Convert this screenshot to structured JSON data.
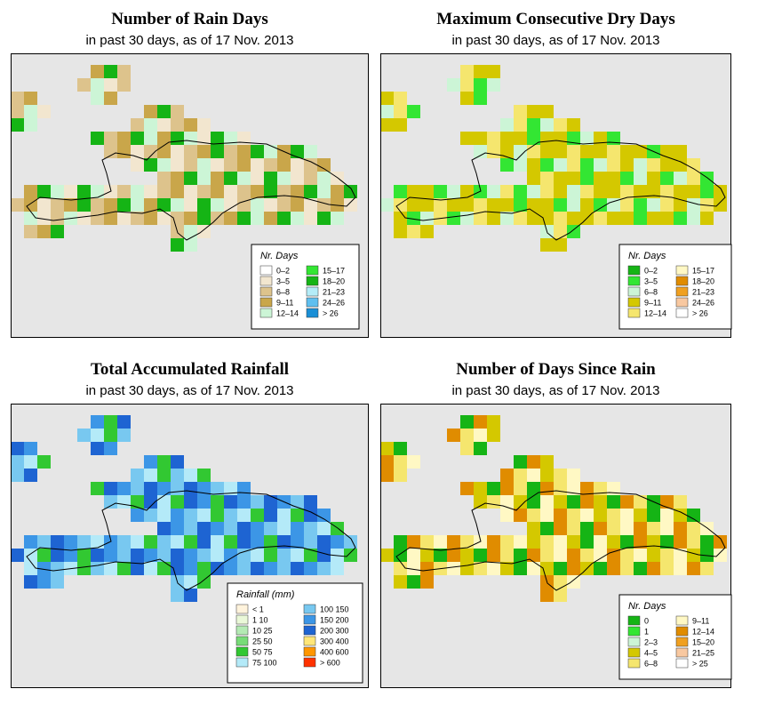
{
  "panels": [
    {
      "id": "rain-days",
      "title": "Number of Rain Days",
      "subtitle": "in past 30 days, as of  17 Nov. 2013",
      "legend": {
        "title": "Nr. Days",
        "items": [
          {
            "label": "0–2",
            "color": "#ffffff"
          },
          {
            "label": "3–5",
            "color": "#f2e6cf"
          },
          {
            "label": "6–8",
            "color": "#ddc38c"
          },
          {
            "label": "9–11",
            "color": "#c9a64a"
          },
          {
            "label": "12–14",
            "color": "#ccf5d6"
          },
          {
            "label": "15–17",
            "color": "#33e633"
          },
          {
            "label": "18–20",
            "color": "#15b415"
          },
          {
            "label": "21–23",
            "color": "#b4ecf8"
          },
          {
            "label": "24–26",
            "color": "#5fbfef"
          },
          {
            "label": "> 26",
            "color": "#1a8fd6"
          }
        ]
      },
      "grid_palette": [
        "#c9a64a",
        "#ddc38c",
        "#f2e6cf",
        "#ccf5d6",
        "#15b415"
      ]
    },
    {
      "id": "dry-days",
      "title": "Maximum Consecutive Dry Days",
      "subtitle": "in past 30 days, as of  17 Nov. 2013",
      "legend": {
        "title": "Nr. Days",
        "items": [
          {
            "label": "0–2",
            "color": "#15b415"
          },
          {
            "label": "3–5",
            "color": "#33e633"
          },
          {
            "label": "6–8",
            "color": "#ccf5d6"
          },
          {
            "label": "9–11",
            "color": "#d4c800"
          },
          {
            "label": "12–14",
            "color": "#f5e66e"
          },
          {
            "label": "15–17",
            "color": "#fff8c4"
          },
          {
            "label": "18–20",
            "color": "#e08c00"
          },
          {
            "label": "21–23",
            "color": "#f0a020"
          },
          {
            "label": "24–26",
            "color": "#f8c8a0"
          },
          {
            "label": "> 26",
            "color": "#ffffff"
          }
        ]
      },
      "grid_palette": [
        "#d4c800",
        "#d4c800",
        "#f5e66e",
        "#ccf5d6",
        "#33e633"
      ]
    },
    {
      "id": "rainfall",
      "title": "Total Accumulated Rainfall",
      "subtitle": "in past 30 days, as of  17 Nov. 2013",
      "legend": {
        "title": "Rainfall (mm)",
        "items": [
          {
            "label": "< 1",
            "color": "#fff3dc"
          },
          {
            "label": "1   10",
            "color": "#eaf8d8"
          },
          {
            "label": "10   25",
            "color": "#b4eab4"
          },
          {
            "label": "25   50",
            "color": "#78dc78"
          },
          {
            "label": "50   75",
            "color": "#32c832"
          },
          {
            "label": "75  100",
            "color": "#b4eaf8"
          },
          {
            "label": "100  150",
            "color": "#78c8f0"
          },
          {
            "label": "150  200",
            "color": "#3c96e6"
          },
          {
            "label": "200  300",
            "color": "#1e64d2"
          },
          {
            "label": "300  400",
            "color": "#ffe678"
          },
          {
            "label": "400  600",
            "color": "#ff9600"
          },
          {
            "label": "> 600",
            "color": "#ff3200"
          }
        ]
      },
      "grid_palette": [
        "#78c8f0",
        "#3c96e6",
        "#1e64d2",
        "#32c832",
        "#b4eaf8"
      ]
    },
    {
      "id": "days-since-rain",
      "title": "Number of Days Since Rain",
      "subtitle": "in past 30 days, as of  17 Nov. 2013",
      "legend": {
        "title": "Nr. Days",
        "items": [
          {
            "label": "0",
            "color": "#15b415"
          },
          {
            "label": "1",
            "color": "#33e633"
          },
          {
            "label": "2–3",
            "color": "#ccf5d6"
          },
          {
            "label": "4–5",
            "color": "#d4c800"
          },
          {
            "label": "6–8",
            "color": "#f5e66e"
          },
          {
            "label": "9–11",
            "color": "#fff8c4"
          },
          {
            "label": "12–14",
            "color": "#e08c00"
          },
          {
            "label": "15–20",
            "color": "#f0a020"
          },
          {
            "label": "21–25",
            "color": "#f8c8a0"
          },
          {
            "label": "> 25",
            "color": "#ffffff"
          }
        ]
      },
      "grid_palette": [
        "#fff8c4",
        "#f5e66e",
        "#e08c00",
        "#15b415",
        "#d4c800"
      ]
    }
  ],
  "colors": {
    "map_background": "#e6e6e6",
    "frame": "#000000",
    "coastline": "#000000"
  }
}
